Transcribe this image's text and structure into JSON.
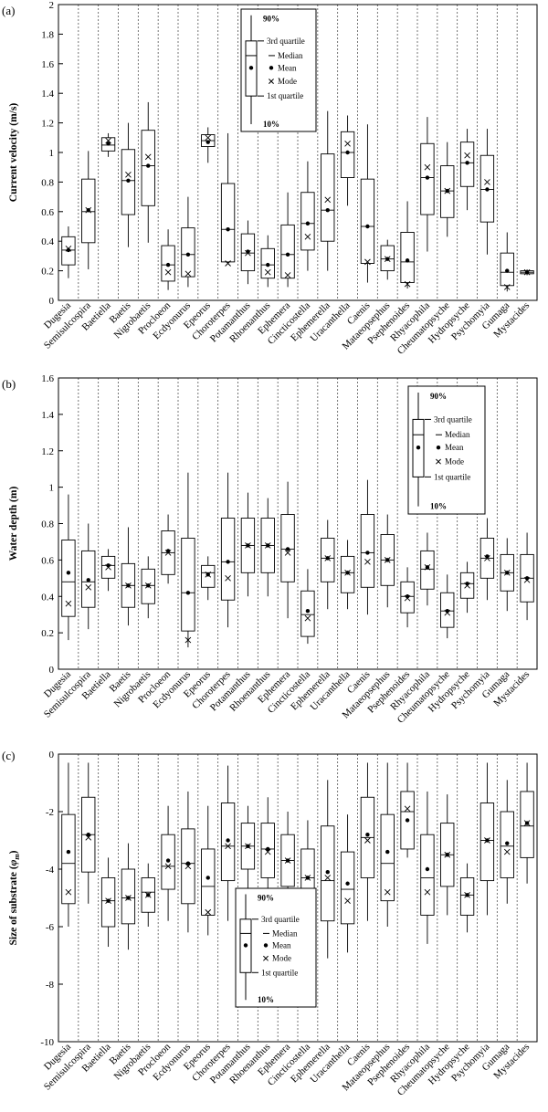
{
  "chart_data": [
    {
      "type": "box",
      "panel_label": "(a)",
      "ylabel": "Current velocity (m/s)",
      "ylim": [
        0,
        2.0
      ],
      "yticks": [
        "0",
        "0.2",
        "0.4",
        "0.6",
        "0.8",
        "1",
        "1.2",
        "1.4",
        "1.6",
        "1.8",
        "2"
      ],
      "legend_position": "top-center",
      "categories": [
        "Dugesia",
        "Semisulcospira",
        "Baetiella",
        "Baetis",
        "Nigrobaetis",
        "Procloeon",
        "Ecdyonurus",
        "Epeorus",
        "Choroterpes",
        "Potamanthus",
        "Rhoenanthus",
        "Ephemera",
        "Cincticostella",
        "Ephemerella",
        "Uracanthella",
        "Caenis",
        "Mataeopsephus",
        "Psephenoides",
        "Rhyacophila",
        "Cheumatopsyche",
        "Hydropsyche",
        "Psychomyia",
        "Gumaga",
        "Mystacides"
      ],
      "p10": [
        0.15,
        0.21,
        0.97,
        0.36,
        0.39,
        0.07,
        0.09,
        0.93,
        0.25,
        0.11,
        0.09,
        0.09,
        0.2,
        0.2,
        0.64,
        0.12,
        0.14,
        0.08,
        0.33,
        0.43,
        0.61,
        0.31,
        0.06,
        0.17
      ],
      "q1": [
        0.24,
        0.39,
        1.01,
        0.58,
        0.64,
        0.13,
        0.16,
        1.04,
        0.26,
        0.2,
        0.15,
        0.15,
        0.34,
        0.4,
        0.83,
        0.25,
        0.2,
        0.12,
        0.58,
        0.56,
        0.77,
        0.53,
        0.1,
        0.18
      ],
      "median": [
        0.34,
        0.6,
        1.05,
        0.81,
        0.91,
        0.24,
        0.31,
        1.08,
        0.48,
        0.32,
        0.24,
        0.31,
        0.52,
        0.61,
        1.0,
        0.5,
        0.28,
        0.26,
        0.83,
        0.74,
        0.93,
        0.75,
        0.19,
        0.19
      ],
      "q3": [
        0.43,
        0.82,
        1.1,
        1.02,
        1.15,
        0.37,
        0.49,
        1.12,
        0.79,
        0.45,
        0.35,
        0.51,
        0.73,
        0.99,
        1.14,
        0.82,
        0.37,
        0.46,
        1.06,
        0.91,
        1.07,
        0.98,
        0.32,
        0.2
      ],
      "p90": [
        0.5,
        1.01,
        1.13,
        1.2,
        1.34,
        0.48,
        0.7,
        1.17,
        1.13,
        0.54,
        0.44,
        0.73,
        0.94,
        1.28,
        1.25,
        1.19,
        0.41,
        0.67,
        1.24,
        1.07,
        1.16,
        1.16,
        0.46,
        0.21
      ],
      "mean": [
        0.34,
        0.61,
        1.06,
        0.81,
        0.91,
        0.24,
        0.31,
        1.07,
        0.48,
        0.33,
        0.24,
        0.31,
        0.52,
        0.61,
        1.0,
        0.5,
        0.28,
        0.27,
        0.83,
        0.74,
        0.93,
        0.75,
        0.2,
        0.19
      ],
      "mode": [
        0.35,
        0.61,
        1.08,
        0.85,
        0.97,
        0.19,
        0.18,
        1.1,
        0.25,
        0.32,
        0.19,
        0.17,
        0.43,
        0.68,
        1.06,
        0.26,
        0.28,
        0.11,
        0.9,
        0.74,
        0.98,
        0.8,
        0.09,
        0.19
      ]
    },
    {
      "type": "box",
      "panel_label": "(b)",
      "ylabel": "Water depth (m)",
      "ylim": [
        0,
        1.6
      ],
      "yticks": [
        "0",
        "0.2",
        "0.4",
        "0.6",
        "0.8",
        "1",
        "1.2",
        "1.4",
        "1.6"
      ],
      "legend_position": "top-right",
      "categories": [
        "Dugesia",
        "Semisulcospira",
        "Baetiella",
        "Baetis",
        "Nigrobaetis",
        "Procloeon",
        "Ecdyonurus",
        "Epeorus",
        "Choroterpes",
        "Potamanthus",
        "Rhoenanthus",
        "Ephemera",
        "Cincticostella",
        "Ephemerella",
        "Uracanthella",
        "Caenis",
        "Mataeopsephus",
        "Psephenoides",
        "Rhyacophila",
        "Cheumatopsyche",
        "Hydropsyche",
        "Psychomyia",
        "Gumaga",
        "Mystacides"
      ],
      "p10": [
        0.16,
        0.22,
        0.43,
        0.24,
        0.28,
        0.47,
        0.12,
        0.38,
        0.23,
        0.4,
        0.4,
        0.28,
        0.14,
        0.33,
        0.33,
        0.3,
        0.34,
        0.23,
        0.35,
        0.17,
        0.31,
        0.38,
        0.32,
        0.27
      ],
      "q1": [
        0.29,
        0.34,
        0.5,
        0.34,
        0.36,
        0.52,
        0.21,
        0.45,
        0.38,
        0.53,
        0.53,
        0.48,
        0.18,
        0.48,
        0.42,
        0.45,
        0.46,
        0.31,
        0.44,
        0.23,
        0.39,
        0.5,
        0.43,
        0.37
      ],
      "median": [
        0.48,
        0.48,
        0.57,
        0.46,
        0.46,
        0.64,
        0.42,
        0.53,
        0.59,
        0.68,
        0.68,
        0.66,
        0.3,
        0.61,
        0.53,
        0.64,
        0.6,
        0.4,
        0.55,
        0.32,
        0.47,
        0.61,
        0.53,
        0.5
      ],
      "q3": [
        0.71,
        0.65,
        0.62,
        0.58,
        0.55,
        0.76,
        0.72,
        0.57,
        0.83,
        0.83,
        0.83,
        0.85,
        0.43,
        0.72,
        0.62,
        0.85,
        0.74,
        0.48,
        0.65,
        0.42,
        0.53,
        0.72,
        0.63,
        0.63
      ],
      "p90": [
        0.96,
        0.8,
        0.66,
        0.78,
        0.62,
        0.85,
        1.08,
        0.62,
        1.08,
        0.97,
        0.94,
        1.03,
        0.55,
        0.82,
        0.71,
        1.04,
        0.85,
        0.56,
        0.75,
        0.52,
        0.59,
        0.83,
        0.72,
        0.75
      ],
      "mean": [
        0.53,
        0.49,
        0.57,
        0.46,
        0.46,
        0.65,
        0.42,
        0.52,
        0.59,
        0.68,
        0.68,
        0.66,
        0.32,
        0.61,
        0.53,
        0.64,
        0.6,
        0.4,
        0.56,
        0.32,
        0.47,
        0.62,
        0.53,
        0.5
      ],
      "mode": [
        0.36,
        0.45,
        0.56,
        0.46,
        0.46,
        0.64,
        0.16,
        0.52,
        0.5,
        0.68,
        0.68,
        0.64,
        0.28,
        0.61,
        0.53,
        0.59,
        0.6,
        0.39,
        0.56,
        0.31,
        0.46,
        0.61,
        0.53,
        0.49
      ]
    },
    {
      "type": "box",
      "panel_label": "(c)",
      "ylabel": "Size of substrate (φm)",
      "ylim": [
        -10,
        0
      ],
      "yticks": [
        "-10",
        "-8",
        "-6",
        "-4",
        "-2",
        "0"
      ],
      "legend_position": "bottom-center",
      "categories": [
        "Dugesia",
        "Semisulcospira",
        "Baetiella",
        "Baetis",
        "Nigrobaetis",
        "Procloeon",
        "Ecdyonurus",
        "Epeorus",
        "Choroterpes",
        "Potamanthus",
        "Rhoenanthus",
        "Ephemera",
        "Cincticostella",
        "Ephemerella",
        "Uracanthella",
        "Caenis",
        "Mataeopsephus",
        "Psephenoides",
        "Rhyacophila",
        "Cheumatopsyche",
        "Hydropsyche",
        "Psychomyia",
        "Gumaga",
        "Mystacides"
      ],
      "p10": [
        -6.0,
        -5.2,
        -6.7,
        -6.8,
        -6.0,
        -5.8,
        -6.2,
        -6.3,
        -5.8,
        -5.0,
        -5.6,
        -5.5,
        -6.4,
        -7.1,
        -6.9,
        -5.8,
        -6.0,
        -3.6,
        -6.6,
        -5.6,
        -6.2,
        -5.6,
        -5.2,
        -4.5
      ],
      "q1": [
        -5.2,
        -4.1,
        -6.0,
        -5.9,
        -5.5,
        -4.7,
        -5.2,
        -5.6,
        -4.4,
        -4.0,
        -4.3,
        -4.6,
        -5.5,
        -5.8,
        -5.9,
        -4.3,
        -5.1,
        -3.3,
        -5.6,
        -4.6,
        -5.6,
        -4.4,
        -4.3,
        -3.6
      ],
      "median": [
        -3.8,
        -2.8,
        -5.1,
        -5.0,
        -4.8,
        -3.9,
        -3.8,
        -4.6,
        -3.2,
        -3.2,
        -3.3,
        -3.7,
        -4.3,
        -4.4,
        -4.7,
        -2.9,
        -3.8,
        -2.0,
        -4.3,
        -3.5,
        -4.9,
        -3.0,
        -3.2,
        -2.5
      ],
      "q3": [
        -2.1,
        -1.5,
        -4.3,
        -4.0,
        -4.3,
        -2.8,
        -2.6,
        -3.3,
        -1.7,
        -2.4,
        -2.4,
        -2.8,
        -3.3,
        -2.5,
        -3.4,
        -1.5,
        -2.1,
        -1.3,
        -2.8,
        -2.4,
        -4.3,
        -1.7,
        -2.0,
        -1.3
      ],
      "p90": [
        -0.3,
        -0.3,
        -3.6,
        -3.1,
        -3.8,
        -1.8,
        -1.3,
        -1.8,
        -0.4,
        -1.8,
        -1.5,
        -2.0,
        -2.3,
        -0.9,
        -2.1,
        -0.3,
        -0.3,
        -0.3,
        -1.3,
        -1.4,
        -3.8,
        -0.3,
        -0.9,
        -0.3
      ],
      "mean": [
        -3.4,
        -2.8,
        -5.1,
        -5.0,
        -4.9,
        -3.7,
        -3.8,
        -4.3,
        -3.0,
        -3.2,
        -3.3,
        -3.7,
        -4.3,
        -4.1,
        -4.5,
        -2.8,
        -3.4,
        -2.3,
        -4.0,
        -3.5,
        -4.9,
        -3.0,
        -3.1,
        -2.4
      ],
      "mode": [
        -4.8,
        -2.9,
        -5.1,
        -5.0,
        -4.9,
        -3.9,
        -3.9,
        -5.5,
        -3.2,
        -3.2,
        -3.4,
        -3.7,
        -4.3,
        -4.3,
        -5.1,
        -3.0,
        -4.8,
        -1.9,
        -4.8,
        -3.5,
        -4.9,
        -3.0,
        -3.4,
        -2.4
      ]
    }
  ],
  "legend": {
    "p90": "90%",
    "q3": "3rd quartile",
    "median": "Median",
    "mean": "Mean",
    "mode": "Mode",
    "q1": "1st quartile",
    "p10": "10%"
  }
}
